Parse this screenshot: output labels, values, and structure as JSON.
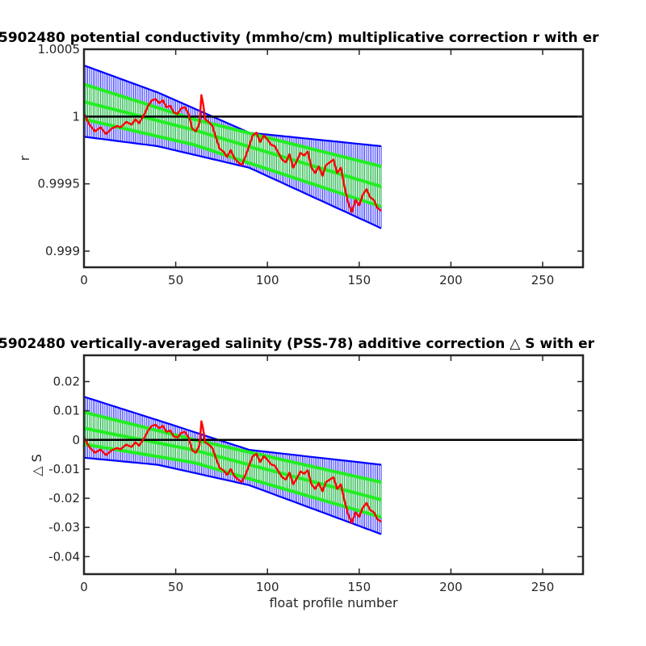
{
  "chart_data": [
    {
      "type": "line",
      "title": "5902480 potential conductivity (mmho/cm) multiplicative correction r with er",
      "xlabel": "",
      "ylabel": "r",
      "xlim": [
        0,
        272
      ],
      "ylim": [
        0.99888,
        1.0005
      ],
      "xticks": [
        0,
        50,
        100,
        150,
        200,
        250
      ],
      "yticks": [
        0.999,
        0.9995,
        1,
        1.0005
      ],
      "ytick_labels": [
        "0.999",
        "0.9995",
        "1",
        "1.0005"
      ],
      "reference_line": 1,
      "grid": false,
      "x_end": 162,
      "blue_upper": [
        [
          0,
          1.00038
        ],
        [
          40,
          1.00018
        ],
        [
          90,
          0.99988
        ],
        [
          162,
          0.99978
        ]
      ],
      "blue_lower": [
        [
          0,
          0.99985
        ],
        [
          40,
          0.99978
        ],
        [
          90,
          0.99962
        ],
        [
          162,
          0.99917
        ]
      ],
      "green_upper": [
        [
          0,
          1.00024
        ],
        [
          60,
          0.99998
        ],
        [
          162,
          0.99963
        ]
      ],
      "green_mid": [
        [
          0,
          1.00011
        ],
        [
          60,
          0.9999
        ],
        [
          162,
          0.99948
        ]
      ],
      "green_lower": [
        [
          0,
          0.99998
        ],
        [
          60,
          0.99979
        ],
        [
          162,
          0.99933
        ]
      ],
      "series": [
        {
          "color": "#ff0000",
          "points": [
            [
              0,
              1.00002
            ],
            [
              3,
              0.99994
            ],
            [
              6,
              0.99989
            ],
            [
              9,
              0.99992
            ],
            [
              12,
              0.99987
            ],
            [
              15,
              0.99991
            ],
            [
              18,
              0.99993
            ],
            [
              20,
              0.99992
            ],
            [
              23,
              0.99996
            ],
            [
              26,
              0.99994
            ],
            [
              28,
              0.99998
            ],
            [
              30,
              0.99995
            ],
            [
              33,
              1.00002
            ],
            [
              35,
              1.00008
            ],
            [
              37,
              1.00012
            ],
            [
              39,
              1.00013
            ],
            [
              41,
              1.0001
            ],
            [
              43,
              1.00012
            ],
            [
              45,
              1.00007
            ],
            [
              47,
              1.00008
            ],
            [
              49,
              1.00003
            ],
            [
              51,
              1.00002
            ],
            [
              53,
              1.00006
            ],
            [
              55,
              1.00007
            ],
            [
              57,
              1.00002
            ],
            [
              59,
              0.99991
            ],
            [
              61,
              0.99989
            ],
            [
              63,
              0.99995
            ],
            [
              64,
              1.00016
            ],
            [
              65,
              1.00009
            ],
            [
              66,
              0.99998
            ],
            [
              68,
              0.99996
            ],
            [
              70,
              0.99993
            ],
            [
              72,
              0.99984
            ],
            [
              74,
              0.99976
            ],
            [
              76,
              0.99974
            ],
            [
              78,
              0.9997
            ],
            [
              80,
              0.99975
            ],
            [
              82,
              0.99969
            ],
            [
              84,
              0.99966
            ],
            [
              86,
              0.99964
            ],
            [
              88,
              0.9997
            ],
            [
              90,
              0.99978
            ],
            [
              92,
              0.99986
            ],
            [
              94,
              0.99988
            ],
            [
              96,
              0.99981
            ],
            [
              98,
              0.99986
            ],
            [
              100,
              0.99983
            ],
            [
              102,
              0.99979
            ],
            [
              104,
              0.99978
            ],
            [
              106,
              0.99973
            ],
            [
              108,
              0.99968
            ],
            [
              110,
              0.99966
            ],
            [
              112,
              0.99972
            ],
            [
              114,
              0.99962
            ],
            [
              116,
              0.99967
            ],
            [
              118,
              0.99973
            ],
            [
              120,
              0.99971
            ],
            [
              122,
              0.99974
            ],
            [
              124,
              0.99962
            ],
            [
              126,
              0.99958
            ],
            [
              128,
              0.99963
            ],
            [
              130,
              0.99956
            ],
            [
              132,
              0.99964
            ],
            [
              134,
              0.99966
            ],
            [
              136,
              0.99968
            ],
            [
              138,
              0.99958
            ],
            [
              140,
              0.99962
            ],
            [
              142,
              0.99948
            ],
            [
              144,
              0.99936
            ],
            [
              146,
              0.99929
            ],
            [
              148,
              0.99938
            ],
            [
              150,
              0.99934
            ],
            [
              152,
              0.99942
            ],
            [
              154,
              0.99946
            ],
            [
              156,
              0.9994
            ],
            [
              158,
              0.99938
            ],
            [
              160,
              0.99932
            ],
            [
              162,
              0.9993
            ]
          ]
        }
      ]
    },
    {
      "type": "line",
      "title": "5902480 vertically-averaged salinity (PSS-78) additive correction △ S with er",
      "xlabel": "float profile number",
      "ylabel": "△ S",
      "xlim": [
        0,
        272
      ],
      "ylim": [
        -0.046,
        0.029
      ],
      "xticks": [
        0,
        50,
        100,
        150,
        200,
        250
      ],
      "yticks": [
        -0.04,
        -0.03,
        -0.02,
        -0.01,
        0,
        0.01,
        0.02
      ],
      "ytick_labels": [
        "-0.04",
        "-0.03",
        "-0.02",
        "-0.01",
        "0",
        "0.01",
        "0.02"
      ],
      "reference_line": 0,
      "grid": false,
      "x_end": 162,
      "blue_upper": [
        [
          0,
          0.0148
        ],
        [
          40,
          0.0068
        ],
        [
          90,
          -0.0034
        ],
        [
          162,
          -0.0085
        ]
      ],
      "blue_lower": [
        [
          0,
          -0.0061
        ],
        [
          40,
          -0.0085
        ],
        [
          90,
          -0.0155
        ],
        [
          162,
          -0.0323
        ]
      ],
      "green_upper": [
        [
          0,
          0.0095
        ],
        [
          60,
          0.0001
        ],
        [
          162,
          -0.0145
        ]
      ],
      "green_mid": [
        [
          0,
          0.004
        ],
        [
          60,
          -0.0035
        ],
        [
          162,
          -0.0205
        ]
      ],
      "green_lower": [
        [
          0,
          -0.0015
        ],
        [
          60,
          -0.0078
        ],
        [
          162,
          -0.0265
        ]
      ],
      "series": [
        {
          "color": "#ff0000",
          "points": [
            [
              0,
              0.0008
            ],
            [
              3,
              -0.0025
            ],
            [
              6,
              -0.0044
            ],
            [
              9,
              -0.0033
            ],
            [
              12,
              -0.0052
            ],
            [
              15,
              -0.0036
            ],
            [
              18,
              -0.0028
            ],
            [
              20,
              -0.0032
            ],
            [
              23,
              -0.0016
            ],
            [
              26,
              -0.0024
            ],
            [
              28,
              -0.0008
            ],
            [
              30,
              -0.002
            ],
            [
              33,
              0.0008
            ],
            [
              35,
              0.0032
            ],
            [
              37,
              0.0048
            ],
            [
              39,
              0.0052
            ],
            [
              41,
              0.004
            ],
            [
              43,
              0.0048
            ],
            [
              45,
              0.0028
            ],
            [
              47,
              0.0032
            ],
            [
              49,
              0.0012
            ],
            [
              51,
              0.0008
            ],
            [
              53,
              0.0024
            ],
            [
              55,
              0.0028
            ],
            [
              57,
              0.0008
            ],
            [
              59,
              -0.0036
            ],
            [
              61,
              -0.0044
            ],
            [
              63,
              -0.002
            ],
            [
              64,
              0.0064
            ],
            [
              65,
              0.0036
            ],
            [
              66,
              -0.0008
            ],
            [
              68,
              -0.0016
            ],
            [
              70,
              -0.0028
            ],
            [
              72,
              -0.0064
            ],
            [
              74,
              -0.0096
            ],
            [
              76,
              -0.0104
            ],
            [
              78,
              -0.012
            ],
            [
              80,
              -0.01
            ],
            [
              82,
              -0.0124
            ],
            [
              84,
              -0.0136
            ],
            [
              86,
              -0.0144
            ],
            [
              88,
              -0.012
            ],
            [
              90,
              -0.0088
            ],
            [
              92,
              -0.0056
            ],
            [
              94,
              -0.0048
            ],
            [
              96,
              -0.0076
            ],
            [
              98,
              -0.0056
            ],
            [
              100,
              -0.0068
            ],
            [
              102,
              -0.0084
            ],
            [
              104,
              -0.0088
            ],
            [
              106,
              -0.0108
            ],
            [
              108,
              -0.0128
            ],
            [
              110,
              -0.0136
            ],
            [
              112,
              -0.0112
            ],
            [
              114,
              -0.0152
            ],
            [
              116,
              -0.0132
            ],
            [
              118,
              -0.0108
            ],
            [
              120,
              -0.0116
            ],
            [
              122,
              -0.0104
            ],
            [
              124,
              -0.0152
            ],
            [
              126,
              -0.0168
            ],
            [
              128,
              -0.0148
            ],
            [
              130,
              -0.0176
            ],
            [
              132,
              -0.0144
            ],
            [
              134,
              -0.0136
            ],
            [
              136,
              -0.0128
            ],
            [
              138,
              -0.0168
            ],
            [
              140,
              -0.0152
            ],
            [
              142,
              -0.0208
            ],
            [
              144,
              -0.0256
            ],
            [
              146,
              -0.0284
            ],
            [
              148,
              -0.0248
            ],
            [
              150,
              -0.0264
            ],
            [
              152,
              -0.0232
            ],
            [
              154,
              -0.0216
            ],
            [
              156,
              -0.024
            ],
            [
              158,
              -0.0248
            ],
            [
              160,
              -0.0272
            ],
            [
              162,
              -0.028
            ]
          ]
        }
      ]
    }
  ]
}
